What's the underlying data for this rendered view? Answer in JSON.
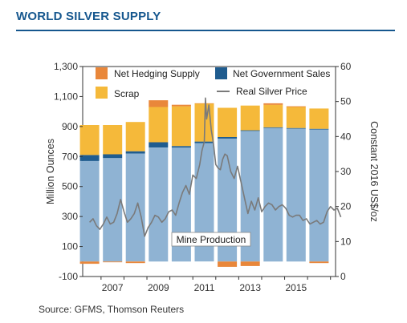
{
  "header": {
    "title": "WORLD SILVER SUPPLY"
  },
  "footer": {
    "source": "Source: GFMS, Thomson Reuters"
  },
  "colors": {
    "mine_production": "#8fb3d3",
    "net_government_sales": "#1f5c8f",
    "scrap": "#f5b93a",
    "net_hedging_supply": "#e9873a",
    "real_silver_price": "#7a7a7a",
    "title": "#16578e"
  },
  "chart_data": {
    "type": "bar",
    "stacked": true,
    "categories": [
      "2006",
      "2007",
      "2008",
      "2009",
      "2010",
      "2011",
      "2012",
      "2013",
      "2014",
      "2015",
      "2016"
    ],
    "ylabel": "Million Ounces",
    "y2label": "Constant 2016 US$/oz",
    "ylim": [
      -100,
      1300
    ],
    "y2lim": [
      0,
      60
    ],
    "yticks": [
      -100,
      100,
      300,
      500,
      700,
      900,
      1100,
      1300
    ],
    "y2ticks": [
      0,
      10,
      20,
      30,
      40,
      50,
      60
    ],
    "yticklabels": [
      "-100",
      "100",
      "300",
      "500",
      "700",
      "900",
      "1,100",
      "1,300"
    ],
    "y2ticklabels": [
      "0",
      "10",
      "20",
      "30",
      "40",
      "50",
      "60"
    ],
    "xticklabels": [
      "2007",
      "2009",
      "2011",
      "2013",
      "2015"
    ],
    "series": [
      {
        "name": "Mine Production",
        "values": [
          670,
          690,
          720,
          760,
          760,
          790,
          820,
          870,
          890,
          885,
          880
        ]
      },
      {
        "name": "Net Government Sales",
        "values": [
          40,
          25,
          15,
          35,
          10,
          10,
          10,
          5,
          5,
          5,
          5
        ]
      },
      {
        "name": "Scrap",
        "values": [
          200,
          195,
          195,
          235,
          265,
          255,
          195,
          165,
          150,
          140,
          135
        ]
      },
      {
        "name": "Net Hedging Supply",
        "values": [
          -15,
          -5,
          -10,
          45,
          10,
          0,
          -35,
          -30,
          10,
          5,
          -10
        ]
      }
    ],
    "price": {
      "name": "Real Silver Price",
      "x": [
        2006.0,
        2006.15,
        2006.3,
        2006.45,
        2006.6,
        2006.75,
        2006.9,
        2007.05,
        2007.2,
        2007.35,
        2007.5,
        2007.65,
        2007.8,
        2007.95,
        2008.1,
        2008.25,
        2008.4,
        2008.55,
        2008.7,
        2008.85,
        2009.0,
        2009.15,
        2009.3,
        2009.45,
        2009.6,
        2009.75,
        2009.9,
        2010.05,
        2010.2,
        2010.35,
        2010.5,
        2010.65,
        2010.8,
        2010.9,
        2011.0,
        2011.05,
        2011.1,
        2011.2,
        2011.3,
        2011.4,
        2011.5,
        2011.6,
        2011.7,
        2011.8,
        2011.9,
        2012.0,
        2012.15,
        2012.3,
        2012.45,
        2012.6,
        2012.75,
        2012.9,
        2013.05,
        2013.2,
        2013.35,
        2013.5,
        2013.65,
        2013.8,
        2013.95,
        2014.1,
        2014.25,
        2014.4,
        2014.55,
        2014.7,
        2014.85,
        2015.0,
        2015.15,
        2015.3,
        2015.45,
        2015.6,
        2015.75,
        2015.9,
        2016.05,
        2016.2,
        2016.35,
        2016.5,
        2016.65,
        2016.8,
        2016.95
      ],
      "values": [
        15.5,
        16.5,
        14.5,
        13.5,
        15.0,
        17.0,
        15.0,
        15.5,
        18.0,
        22.0,
        18.5,
        15.5,
        16.5,
        18.0,
        21.0,
        17.0,
        11.5,
        14.0,
        15.5,
        17.5,
        17.0,
        15.5,
        16.5,
        18.5,
        19.0,
        17.5,
        21.0,
        24.0,
        26.0,
        23.5,
        29.0,
        28.0,
        32.0,
        36.0,
        38.5,
        51.0,
        45.0,
        49.0,
        42.0,
        38.0,
        32.0,
        31.0,
        30.5,
        33.5,
        35.0,
        34.5,
        30.0,
        28.0,
        31.5,
        27.0,
        22.5,
        18.0,
        21.5,
        19.0,
        22.5,
        18.5,
        20.0,
        21.0,
        20.5,
        19.0,
        20.0,
        20.5,
        19.5,
        17.5,
        17.0,
        17.5,
        17.5,
        16.0,
        16.5,
        15.0,
        15.5,
        16.0,
        15.0,
        15.5,
        18.5,
        20.0,
        19.0,
        19.5,
        17.0
      ]
    },
    "annotations": [
      "Mine Production"
    ],
    "legend": {
      "placement": "top",
      "items": [
        "Net  Hedging Supply",
        "Net Government Sales",
        "Scrap",
        "Real Silver Price"
      ]
    },
    "grid": false
  }
}
